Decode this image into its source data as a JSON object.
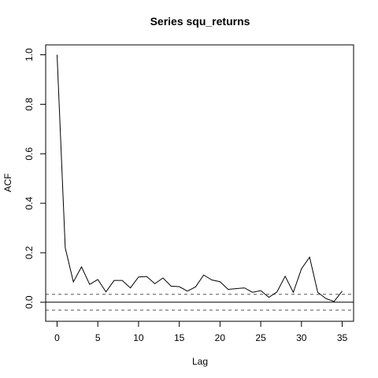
{
  "chart_data": {
    "type": "line",
    "title": "Series  squ_returns",
    "xlabel": "Lag",
    "ylabel": "ACF",
    "x": [
      0,
      1,
      2,
      3,
      4,
      5,
      6,
      7,
      8,
      9,
      10,
      11,
      12,
      13,
      14,
      15,
      16,
      17,
      18,
      19,
      20,
      21,
      22,
      23,
      24,
      25,
      26,
      27,
      28,
      29,
      30,
      31,
      32,
      33,
      34,
      35
    ],
    "series": [
      {
        "values": [
          1.0,
          0.22,
          0.082,
          0.143,
          0.072,
          0.092,
          0.042,
          0.088,
          0.088,
          0.058,
          0.102,
          0.104,
          0.075,
          0.098,
          0.065,
          0.063,
          0.045,
          0.062,
          0.11,
          0.09,
          0.083,
          0.052,
          0.055,
          0.058,
          0.04,
          0.047,
          0.02,
          0.042,
          0.105,
          0.04,
          0.135,
          0.182,
          0.04,
          0.015,
          0.003,
          0.045
        ]
      }
    ],
    "xlim": [
      -1.4,
      36.4
    ],
    "ylim": [
      -0.077,
      1.04
    ],
    "x_ticks": [
      0,
      5,
      10,
      15,
      20,
      25,
      30,
      35
    ],
    "y_ticks": [
      0.0,
      0.2,
      0.4,
      0.6,
      0.8,
      1.0
    ],
    "y_tick_labels": [
      "0.0",
      "0.2",
      "0.4",
      "0.6",
      "0.8",
      "1.0"
    ],
    "confidence_bound": 0.032,
    "grid": false,
    "colors": {
      "line": "#000000",
      "ci": "#555555"
    }
  }
}
